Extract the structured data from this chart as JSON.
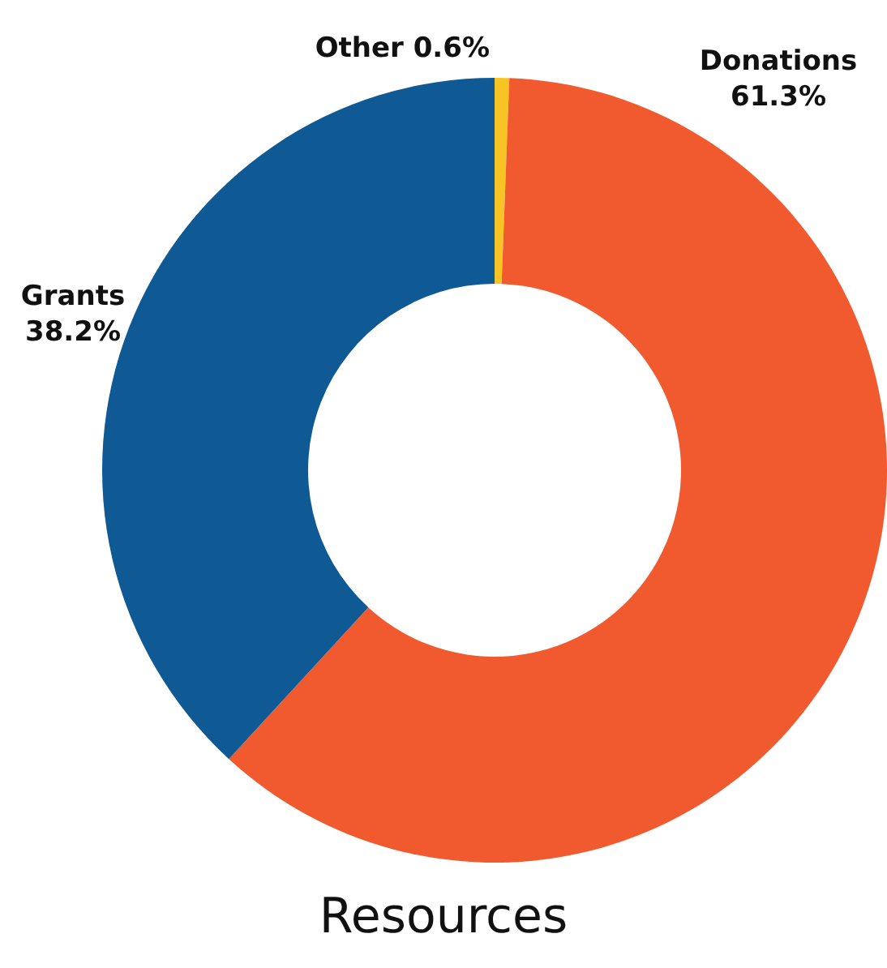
{
  "chart_data": {
    "type": "donut",
    "title": "Resources",
    "categories": [
      "Other",
      "Donations",
      "Grants"
    ],
    "values": [
      0.6,
      61.3,
      38.2
    ],
    "value_labels": [
      "0.6%",
      "61.3%",
      "38.2%"
    ],
    "colors": [
      "#f7c325",
      "#f15a2e",
      "#0f5a94"
    ]
  }
}
